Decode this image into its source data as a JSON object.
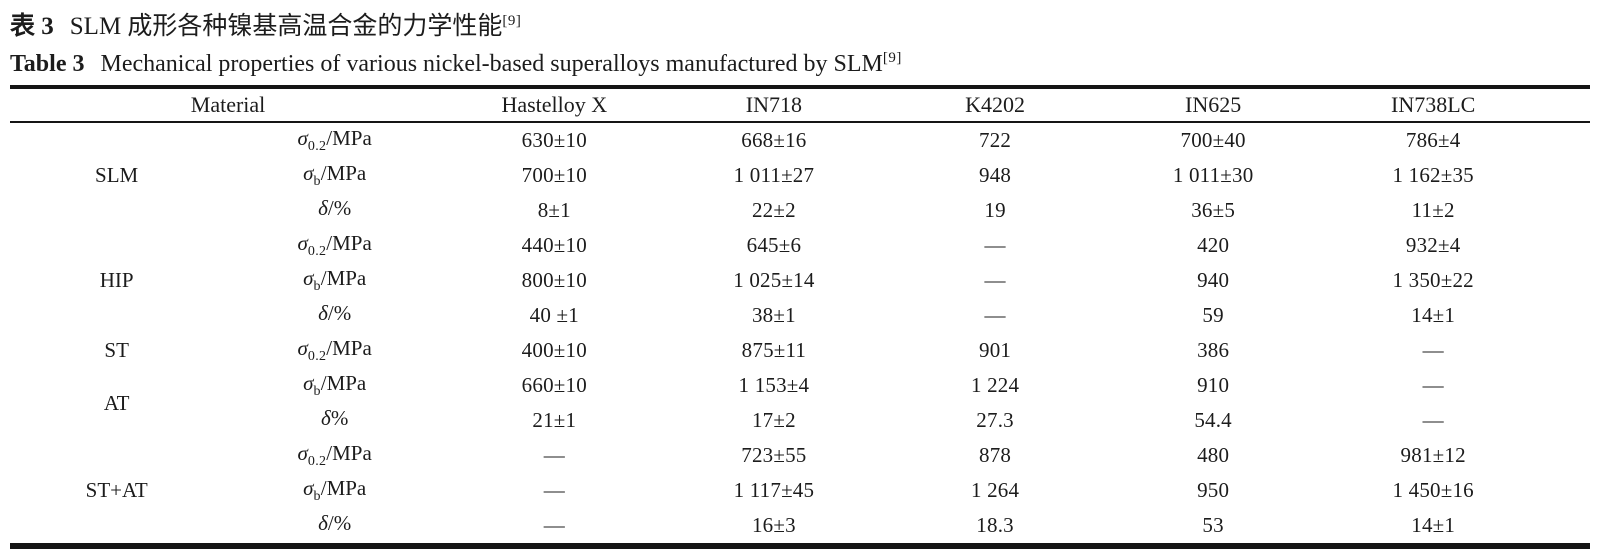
{
  "caption": {
    "zh_label": "表 3",
    "zh_text": "SLM 成形各种镍基高温合金的力学性能",
    "zh_sup": "[9]",
    "en_label": "Table 3",
    "en_text": "Mechanical properties of various nickel-based superalloys manufactured by SLM",
    "en_sup": "[9]"
  },
  "table": {
    "header": {
      "material": "Material",
      "columns": [
        "Hastelloy X",
        "IN718",
        "K4202",
        "IN625",
        "IN738LC"
      ]
    },
    "rows": [
      {
        "group": "SLM",
        "prop": {
          "sym": "σ",
          "sub": "0.2",
          "suffix": "/MPa"
        },
        "values": [
          "630±10",
          "668±16",
          "722",
          "700±40",
          "786±4"
        ]
      },
      {
        "prop": {
          "sym": "σ",
          "sub": "b",
          "suffix": "/MPa"
        },
        "values": [
          "700±10",
          "1 011±27",
          "948",
          "1 011±30",
          "1 162±35"
        ]
      },
      {
        "prop": {
          "sym": "δ",
          "sub": "",
          "suffix": "/%"
        },
        "values": [
          "8±1",
          "22±2",
          "19",
          "36±5",
          "11±2"
        ]
      },
      {
        "group": "HIP",
        "prop": {
          "sym": "σ",
          "sub": "0.2",
          "suffix": "/MPa"
        },
        "values": [
          "440±10",
          "645±6",
          "—",
          "420",
          "932±4"
        ]
      },
      {
        "prop": {
          "sym": "σ",
          "sub": "b",
          "suffix": "/MPa"
        },
        "values": [
          "800±10",
          "1 025±14",
          "—",
          "940",
          "1 350±22"
        ]
      },
      {
        "prop": {
          "sym": "δ",
          "sub": "",
          "suffix": "/%"
        },
        "values": [
          "40 ±1",
          "38±1",
          "—",
          "59",
          "14±1"
        ]
      },
      {
        "group": "ST",
        "prop": {
          "sym": "σ",
          "sub": "0.2",
          "suffix": "/MPa"
        },
        "values": [
          "400±10",
          "875±11",
          "901",
          "386",
          "—"
        ]
      },
      {
        "group": "AT",
        "prop": {
          "sym": "σ",
          "sub": "b",
          "suffix": "/MPa"
        },
        "values": [
          "660±10",
          "1 153±4",
          "1 224",
          "910",
          "—"
        ]
      },
      {
        "prop": {
          "sym": "δ",
          "sub": "",
          "suffix": "%"
        },
        "values": [
          "21±1",
          "17±2",
          "27.3",
          "54.4",
          "—"
        ]
      },
      {
        "group": "ST+AT",
        "prop": {
          "sym": "σ",
          "sub": "0.2",
          "suffix": "/MPa"
        },
        "values": [
          "—",
          "723±55",
          "878",
          "480",
          "981±12"
        ]
      },
      {
        "prop": {
          "sym": "σ",
          "sub": "b",
          "suffix": "/MPa"
        },
        "values": [
          "—",
          "1 117±45",
          "1 264",
          "950",
          "1 450±16"
        ]
      },
      {
        "prop": {
          "sym": "δ",
          "sub": "",
          "suffix": "/%"
        },
        "values": [
          "—",
          "16±3",
          "18.3",
          "53",
          "14±1"
        ]
      }
    ]
  }
}
